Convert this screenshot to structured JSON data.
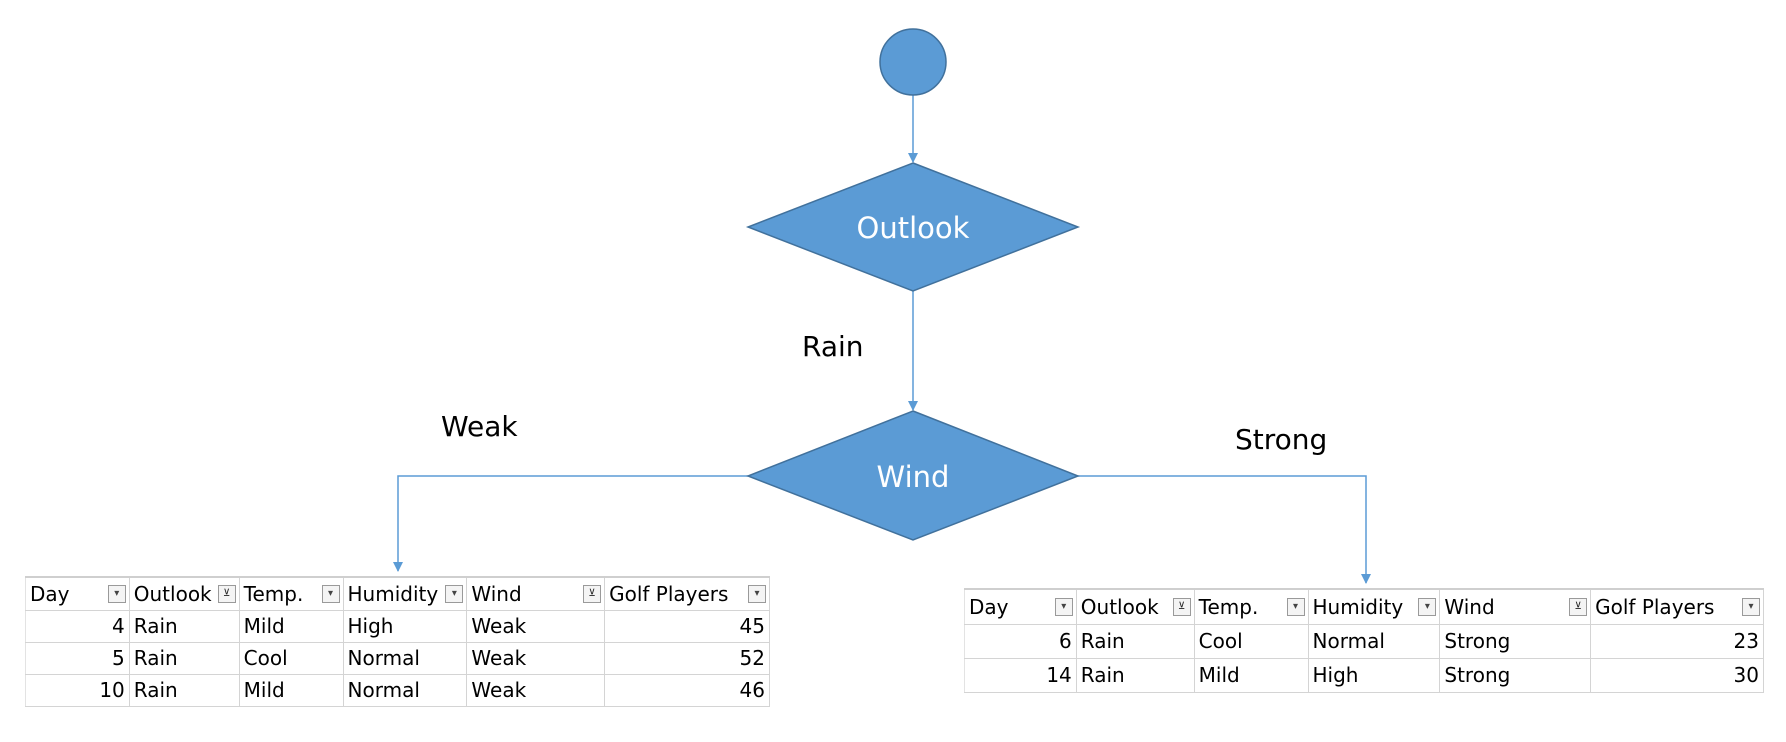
{
  "nodes": {
    "root_label": "",
    "outlook_label": "Outlook",
    "wind_label": "Wind"
  },
  "edge_labels": {
    "rain": "Rain",
    "weak": "Weak",
    "strong": "Strong"
  },
  "colors": {
    "node_fill": "#5B9BD5",
    "node_stroke": "#41719C",
    "edge": "#5B9BD5",
    "node_text": "#FFFFFF"
  },
  "tables": {
    "weak": {
      "headers": [
        "Day",
        "Outlook",
        "Temp.",
        "Humidity",
        "Wind",
        "Golf Players"
      ],
      "filter_buttons": [
        "dropdown-icon",
        "filter-icon",
        "dropdown-icon",
        "dropdown-icon",
        "filter-icon",
        "dropdown-icon"
      ],
      "rows": [
        [
          "4",
          "Rain",
          "Mild",
          "High",
          "Weak",
          "45"
        ],
        [
          "5",
          "Rain",
          "Cool",
          "Normal",
          "Weak",
          "52"
        ],
        [
          "10",
          "Rain",
          "Mild",
          "Normal",
          "Weak",
          "46"
        ]
      ]
    },
    "strong": {
      "headers": [
        "Day",
        "Outlook",
        "Temp.",
        "Humidity",
        "Wind",
        "Golf Players"
      ],
      "filter_buttons": [
        "dropdown-icon",
        "filter-icon",
        "dropdown-icon",
        "dropdown-icon",
        "filter-icon",
        "dropdown-icon"
      ],
      "rows": [
        [
          "6",
          "Rain",
          "Cool",
          "Normal",
          "Strong",
          "23"
        ],
        [
          "14",
          "Rain",
          "Mild",
          "High",
          "Strong",
          "30"
        ]
      ]
    }
  }
}
